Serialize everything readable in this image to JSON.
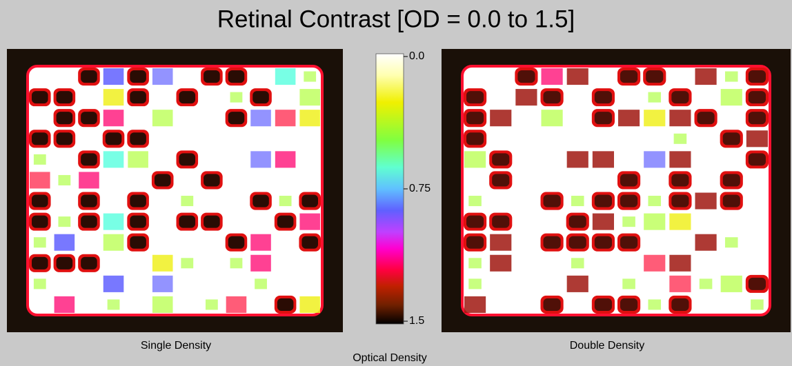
{
  "header": {
    "title": "Retinal Contrast [OD = 0.0 to 1.5]"
  },
  "panels": [
    {
      "label": "Single Density"
    },
    {
      "label": "Double Density"
    }
  ],
  "colorbar": {
    "label": "Optical Density",
    "ticks": [
      {
        "value": 0,
        "label": "0.0"
      },
      {
        "value": 0.75,
        "label": "0.75"
      },
      {
        "value": 1.5,
        "label": "1.5"
      }
    ]
  }
}
